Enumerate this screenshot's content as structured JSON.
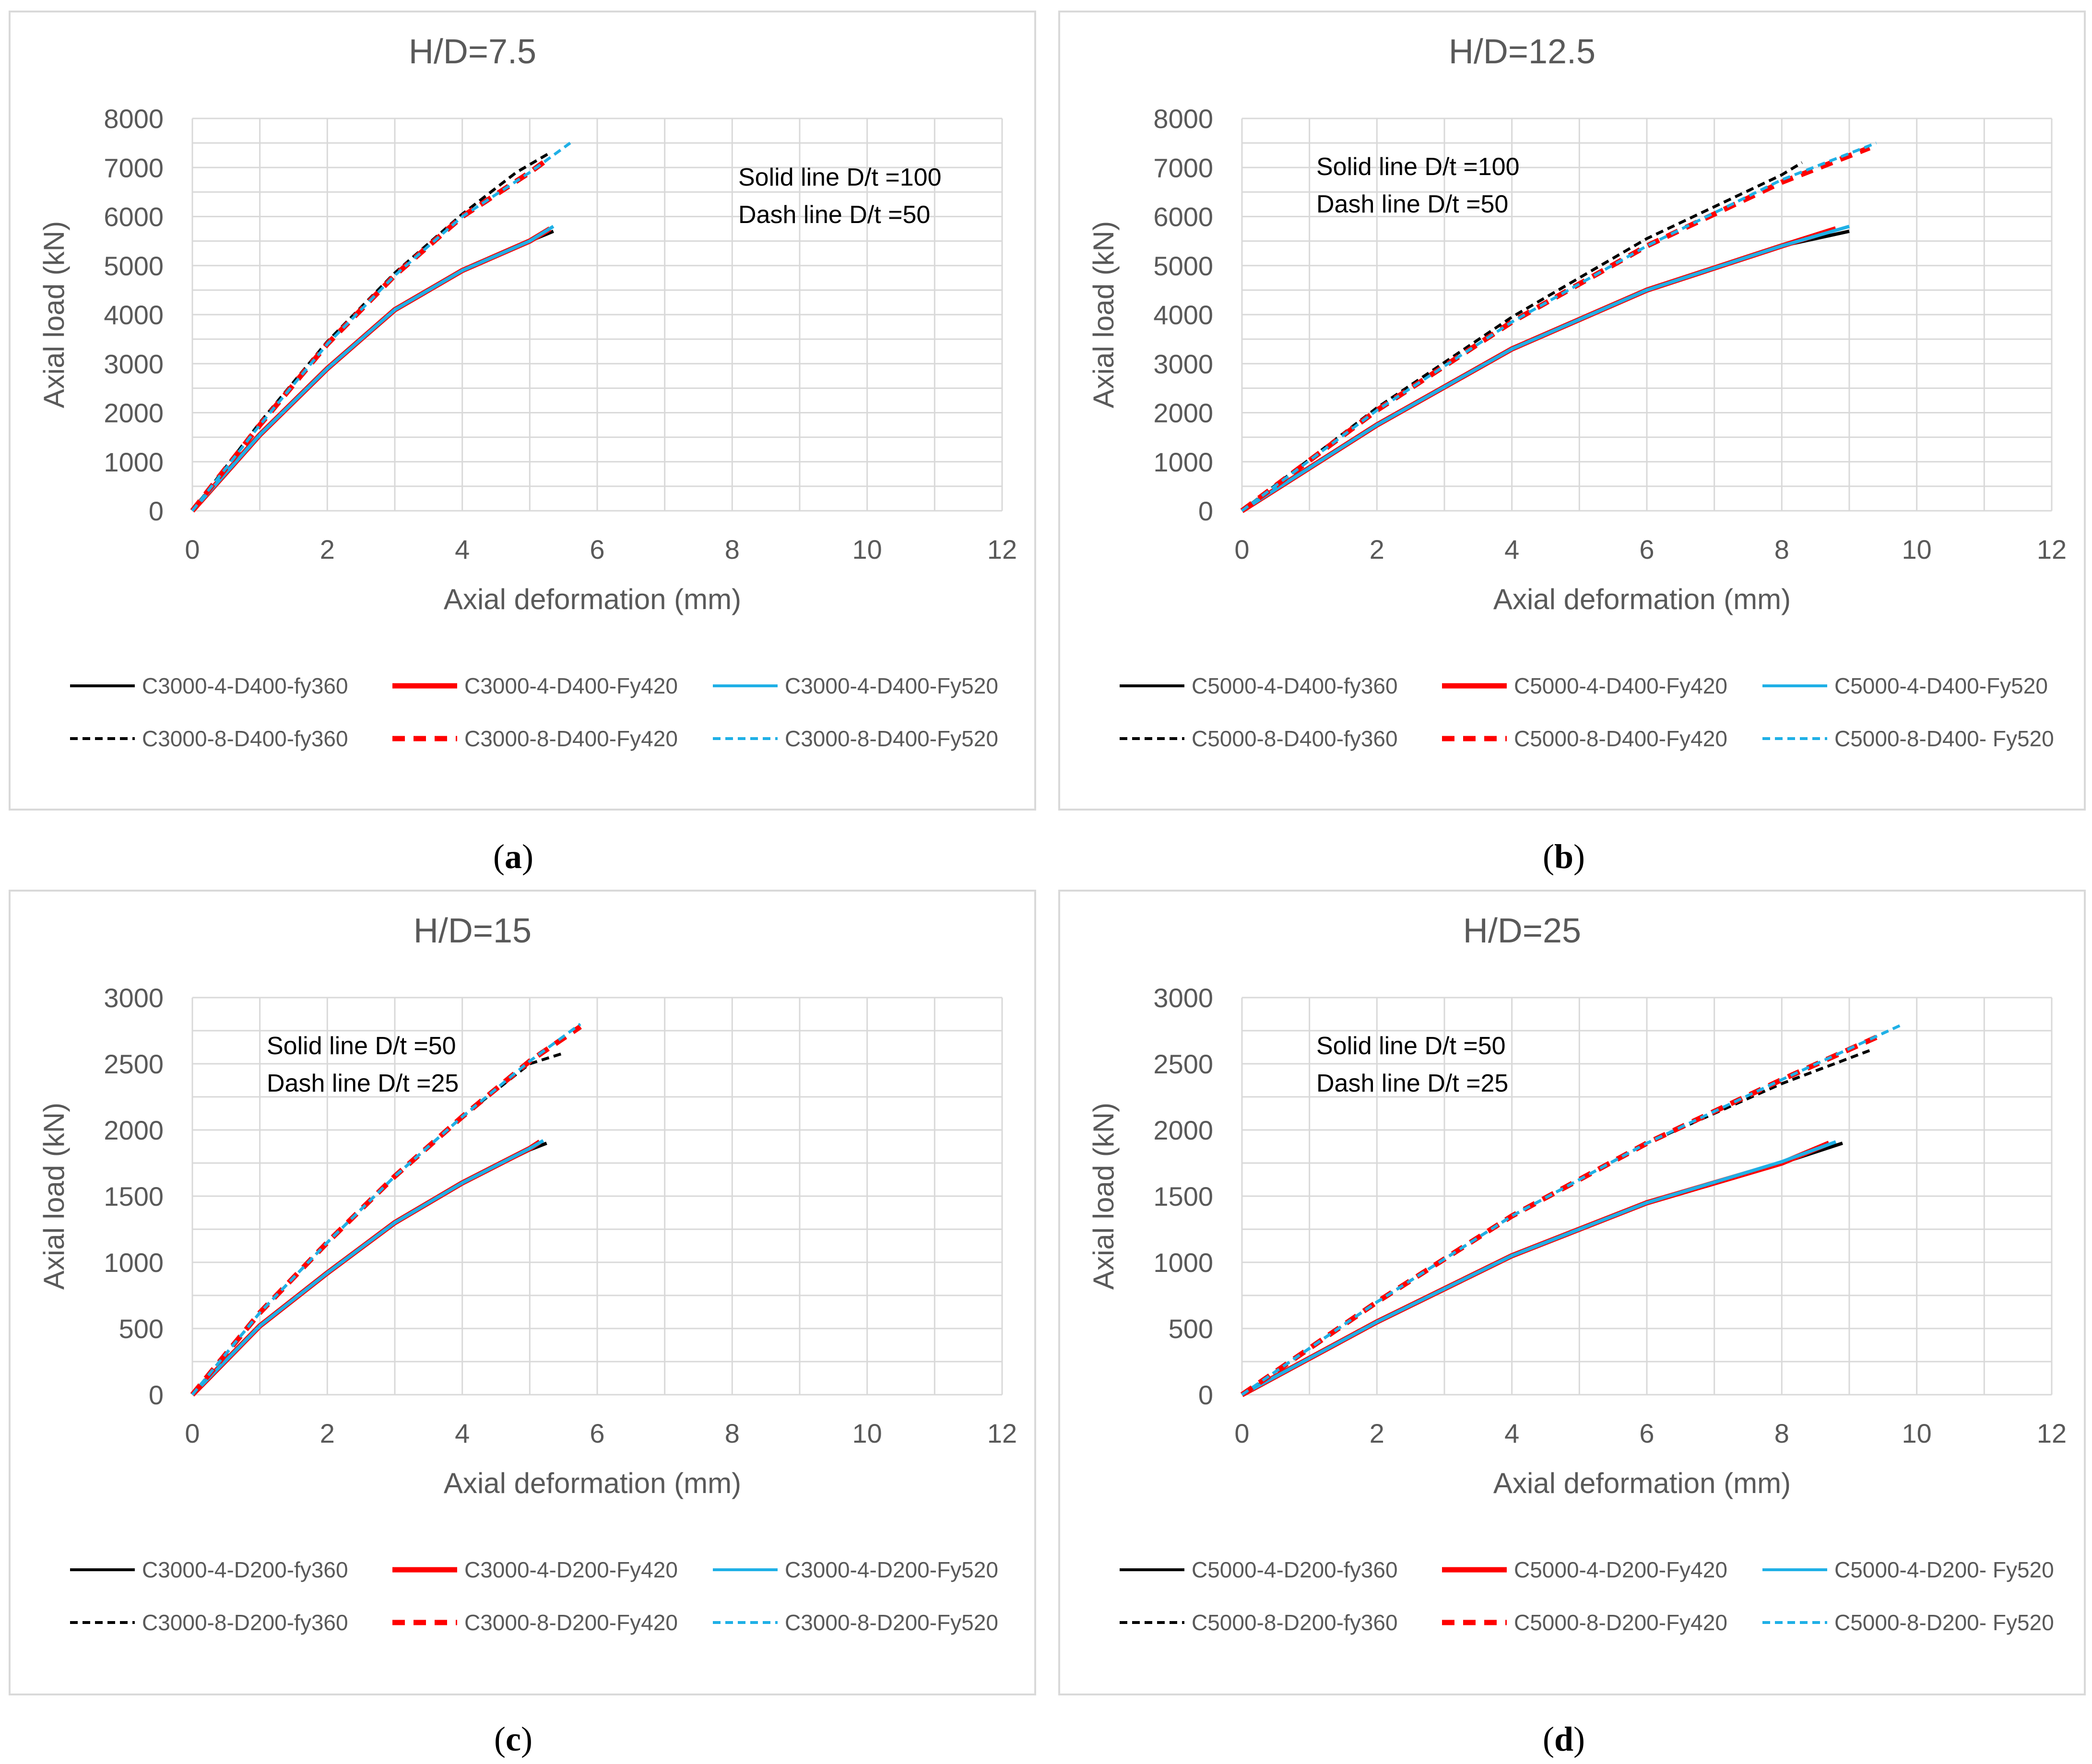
{
  "colors": {
    "black": "#000000",
    "red": "#ff0000",
    "blue": "#1fb0e6",
    "grid": "#d9d9d9",
    "frame": "#d9d9d9",
    "text": "#595959"
  },
  "chart_data": [
    {
      "id": "a",
      "type": "line",
      "caption_label": "a",
      "title": "H/D=7.5",
      "xlabel": "Axial deformation  (mm)",
      "ylabel": "Axial load (kN)",
      "xlim": [
        0,
        12
      ],
      "ylim": [
        0,
        8000
      ],
      "xticks": [
        0,
        2,
        4,
        6,
        8,
        10,
        12
      ],
      "yticks": [
        0,
        1000,
        2000,
        3000,
        4000,
        5000,
        6000,
        7000,
        8000
      ],
      "annotations": [
        "Solid line D/t =100",
        "Dash line D/t =50"
      ],
      "annotation_position": "top-right",
      "series": [
        {
          "name": "C3000-4-D400-fy360",
          "color": "black",
          "dash": false,
          "x": [
            0,
            1,
            2,
            3,
            4,
            5,
            5.35
          ],
          "y": [
            0,
            1550,
            2900,
            4100,
            4900,
            5500,
            5700
          ]
        },
        {
          "name": "C3000-4-D400-Fy420",
          "color": "red",
          "dash": false,
          "x": [
            0,
            1,
            2,
            3,
            4,
            5,
            5.3
          ],
          "y": [
            0,
            1550,
            2900,
            4100,
            4900,
            5500,
            5750
          ]
        },
        {
          "name": "C3000-4-D400-Fy520",
          "color": "blue",
          "dash": false,
          "x": [
            0,
            1,
            2,
            3,
            4,
            5,
            5.35
          ],
          "y": [
            0,
            1550,
            2900,
            4100,
            4900,
            5500,
            5800
          ]
        },
        {
          "name": "C3000-8-D400-fy360",
          "color": "black",
          "dash": true,
          "x": [
            0,
            1,
            2,
            3,
            4,
            4.8,
            5.3
          ],
          "y": [
            0,
            1800,
            3450,
            4850,
            6050,
            6900,
            7300
          ]
        },
        {
          "name": "C3000-8-D400-Fy420",
          "color": "red",
          "dash": true,
          "x": [
            0,
            1,
            2,
            3,
            4,
            5,
            5.3
          ],
          "y": [
            0,
            1750,
            3400,
            4800,
            6000,
            6900,
            7200
          ]
        },
        {
          "name": "C3000-8-D400-Fy520",
          "color": "blue",
          "dash": true,
          "x": [
            0,
            1,
            2,
            3,
            4,
            5,
            5.6
          ],
          "y": [
            0,
            1750,
            3400,
            4800,
            6000,
            6900,
            7500
          ]
        }
      ]
    },
    {
      "id": "b",
      "type": "line",
      "caption_label": "b",
      "title": "H/D=12.5",
      "xlabel": "Axial deformation  (mm)",
      "ylabel": "Axial load (kN)",
      "xlim": [
        0,
        12
      ],
      "ylim": [
        0,
        8000
      ],
      "xticks": [
        0,
        2,
        4,
        6,
        8,
        10,
        12
      ],
      "yticks": [
        0,
        1000,
        2000,
        3000,
        4000,
        5000,
        6000,
        7000,
        8000
      ],
      "annotations": [
        "Solid line D/t =100",
        "Dash line D/t =50"
      ],
      "annotation_position": "top-left",
      "series": [
        {
          "name": "C5000-4-D400-fy360",
          "color": "black",
          "dash": false,
          "x": [
            0,
            2,
            4,
            6,
            8,
            9
          ],
          "y": [
            0,
            1750,
            3300,
            4500,
            5400,
            5700
          ]
        },
        {
          "name": "C5000-4-D400-Fy420",
          "color": "red",
          "dash": false,
          "x": [
            0,
            2,
            4,
            6,
            8,
            8.8
          ],
          "y": [
            0,
            1750,
            3300,
            4500,
            5400,
            5750
          ]
        },
        {
          "name": "C5000-4-D400-Fy520",
          "color": "blue",
          "dash": false,
          "x": [
            0,
            2,
            4,
            6,
            8,
            9
          ],
          "y": [
            0,
            1750,
            3300,
            4500,
            5400,
            5800
          ]
        },
        {
          "name": "C5000-8-D400-fy360",
          "color": "black",
          "dash": true,
          "x": [
            0,
            2,
            4,
            6,
            8,
            8.3
          ],
          "y": [
            0,
            2100,
            3950,
            5550,
            6850,
            7100
          ]
        },
        {
          "name": "C5000-8-D400-Fy420",
          "color": "red",
          "dash": true,
          "x": [
            0,
            2,
            4,
            6,
            8,
            9.3
          ],
          "y": [
            0,
            2050,
            3850,
            5400,
            6700,
            7400
          ]
        },
        {
          "name": "C5000-8-D400- Fy520",
          "color": "blue",
          "dash": true,
          "x": [
            0,
            2,
            4,
            6,
            8,
            9.4
          ],
          "y": [
            0,
            2050,
            3850,
            5400,
            6750,
            7500
          ]
        }
      ]
    },
    {
      "id": "c",
      "type": "line",
      "caption_label": "c",
      "title": "H/D=15",
      "xlabel": "Axial deformation  (mm)",
      "ylabel": "Axial load (kN)",
      "xlim": [
        0,
        12
      ],
      "ylim": [
        0,
        3000
      ],
      "xticks": [
        0,
        2,
        4,
        6,
        8,
        10,
        12
      ],
      "yticks": [
        0,
        500,
        1000,
        1500,
        2000,
        2500,
        3000
      ],
      "annotations": [
        "Solid line D/t =50",
        "Dash line D/t =25"
      ],
      "annotation_position": "top-left",
      "series": [
        {
          "name": "C3000-4-D200-fy360",
          "color": "black",
          "dash": false,
          "x": [
            0,
            1,
            2,
            3,
            4,
            5,
            5.25
          ],
          "y": [
            0,
            520,
            920,
            1300,
            1600,
            1850,
            1900
          ]
        },
        {
          "name": "C3000-4-D200-Fy420",
          "color": "red",
          "dash": false,
          "x": [
            0,
            1,
            2,
            3,
            4,
            5,
            5.15
          ],
          "y": [
            0,
            520,
            920,
            1300,
            1600,
            1860,
            1910
          ]
        },
        {
          "name": "C3000-4-D200-Fy520",
          "color": "blue",
          "dash": false,
          "x": [
            0,
            1,
            2,
            3,
            4,
            5,
            5.2
          ],
          "y": [
            0,
            520,
            920,
            1300,
            1600,
            1860,
            1920
          ]
        },
        {
          "name": "C3000-8-D200-fy360",
          "color": "black",
          "dash": true,
          "x": [
            0,
            1,
            2,
            3,
            4,
            5,
            5.5
          ],
          "y": [
            0,
            620,
            1150,
            1650,
            2100,
            2500,
            2580
          ]
        },
        {
          "name": "C3000-8-D200-Fy420",
          "color": "red",
          "dash": true,
          "x": [
            0,
            1,
            2,
            3,
            4,
            5,
            5.75
          ],
          "y": [
            0,
            620,
            1150,
            1650,
            2100,
            2520,
            2780
          ]
        },
        {
          "name": "C3000-8-D200-Fy520",
          "color": "blue",
          "dash": true,
          "x": [
            0,
            1,
            2,
            3,
            4,
            5,
            5.75
          ],
          "y": [
            0,
            620,
            1150,
            1650,
            2100,
            2520,
            2800
          ]
        }
      ]
    },
    {
      "id": "d",
      "type": "line",
      "caption_label": "d",
      "title": "H/D=25",
      "xlabel": "Axial deformation  (mm)",
      "ylabel": "Axial load (kN)",
      "xlim": [
        0,
        12
      ],
      "ylim": [
        0,
        3000
      ],
      "xticks": [
        0,
        2,
        4,
        6,
        8,
        10,
        12
      ],
      "yticks": [
        0,
        500,
        1000,
        1500,
        2000,
        2500,
        3000
      ],
      "annotations": [
        "Solid line D/t =50",
        "Dash line D/t =25"
      ],
      "annotation_position": "top-left",
      "series": [
        {
          "name": "C5000-4-D200-fy360",
          "color": "black",
          "dash": false,
          "x": [
            0,
            2,
            4,
            6,
            8,
            8.9
          ],
          "y": [
            0,
            550,
            1050,
            1450,
            1750,
            1900
          ]
        },
        {
          "name": "C5000-4-D200-Fy420",
          "color": "red",
          "dash": false,
          "x": [
            0,
            2,
            4,
            6,
            8,
            8.7
          ],
          "y": [
            0,
            550,
            1050,
            1450,
            1750,
            1900
          ]
        },
        {
          "name": "C5000-4-D200- Fy520",
          "color": "blue",
          "dash": false,
          "x": [
            0,
            2,
            4,
            6,
            8,
            8.8
          ],
          "y": [
            0,
            550,
            1050,
            1450,
            1760,
            1910
          ]
        },
        {
          "name": "C5000-8-D200-fy360",
          "color": "black",
          "dash": true,
          "x": [
            0,
            2,
            4,
            6,
            8,
            9.3
          ],
          "y": [
            0,
            700,
            1350,
            1900,
            2350,
            2600
          ]
        },
        {
          "name": "C5000-8-D200-Fy420",
          "color": "red",
          "dash": true,
          "x": [
            0,
            2,
            4,
            6,
            8,
            9.4
          ],
          "y": [
            0,
            700,
            1350,
            1900,
            2380,
            2700
          ]
        },
        {
          "name": "C5000-8-D200- Fy520",
          "color": "blue",
          "dash": true,
          "x": [
            0,
            2,
            4,
            6,
            8,
            9.8
          ],
          "y": [
            0,
            700,
            1350,
            1900,
            2380,
            2800
          ]
        }
      ]
    }
  ]
}
